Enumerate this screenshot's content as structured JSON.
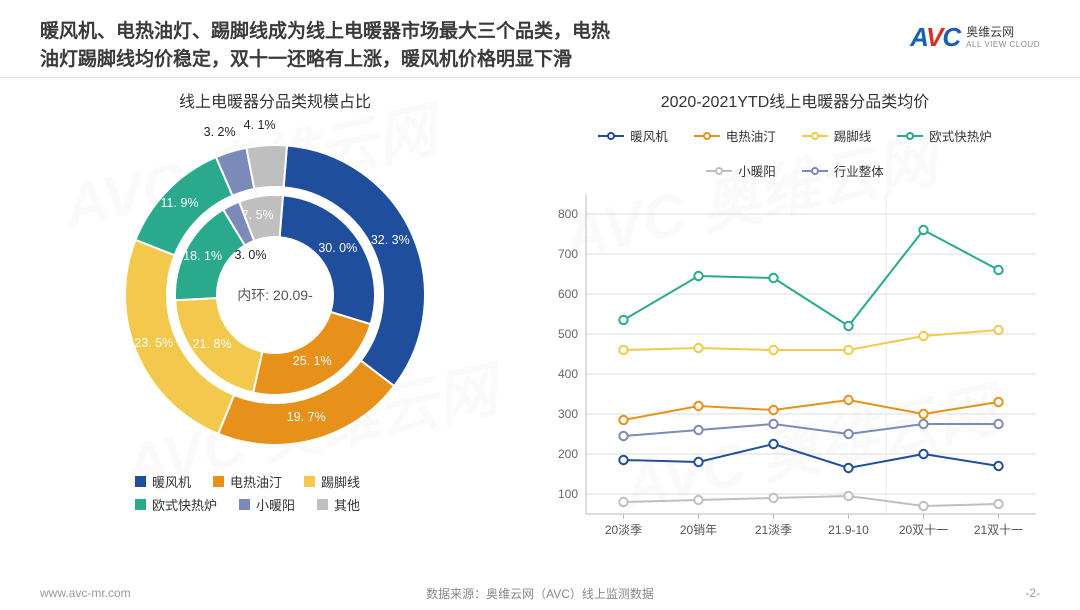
{
  "header": {
    "title_l1": "暖风机、电热油灯、踢脚线成为线上电暖器市场最大三个品类，电热",
    "title_l2": "油灯踢脚线均价稳定，双十一还略有上涨，暖风机价格明显下滑",
    "brand_main": "AVC",
    "brand_cn": "奥维云网",
    "brand_en": "ALL VIEW CLOUD"
  },
  "donut": {
    "title": "线上电暖器分品类规模占比",
    "center_label": "内环: 20.09-",
    "categories": [
      "暖风机",
      "电热油汀",
      "踢脚线",
      "欧式快热炉",
      "小暖阳",
      "其他"
    ],
    "colors": [
      "#1f4e9c",
      "#e8911a",
      "#f2c94c",
      "#2aa98c",
      "#7b8ab8",
      "#bfbfbf"
    ],
    "outer_values": [
      32.3,
      19.7,
      23.5,
      11.9,
      3.2,
      4.1
    ],
    "inner_values": [
      30.0,
      25.1,
      21.8,
      18.1,
      3.0,
      7.5
    ],
    "outer_labels": [
      "32. 3%",
      "19. 7%",
      "23. 5%",
      "11. 9%",
      "3. 2%",
      "4. 1%"
    ],
    "inner_labels": [
      "30. 0%",
      "25. 1%",
      "21. 8%",
      "18. 1%",
      "3. 0%",
      "7. 5%"
    ],
    "legend_rows": [
      [
        {
          "sw": "#1f4e9c",
          "t": "暖风机"
        },
        {
          "sw": "#e8911a",
          "t": "电热油汀"
        },
        {
          "sw": "#f2c94c",
          "t": "踢脚线"
        }
      ],
      [
        {
          "sw": "#2aa98c",
          "t": "欧式快热炉"
        },
        {
          "sw": "#7b8ab8",
          "t": "小暖阳"
        },
        {
          "sw": "#bfbfbf",
          "t": "其他"
        }
      ]
    ]
  },
  "line": {
    "title": "2020-2021YTD线上电暖器分品类均价",
    "series": [
      {
        "name": "暖风机",
        "color": "#1f4e9c",
        "values": [
          185,
          180,
          225,
          165,
          200,
          170
        ]
      },
      {
        "name": "电热油汀",
        "color": "#e8911a",
        "values": [
          285,
          320,
          310,
          335,
          300,
          330
        ]
      },
      {
        "name": "踢脚线",
        "color": "#f2c94c",
        "values": [
          460,
          465,
          460,
          460,
          495,
          510
        ]
      },
      {
        "name": "欧式快热炉",
        "color": "#2aa98c",
        "values": [
          535,
          645,
          640,
          520,
          760,
          660
        ]
      },
      {
        "name": "小暖阳",
        "color": "#bfbfbf",
        "values": [
          80,
          85,
          90,
          95,
          70,
          75
        ]
      },
      {
        "name": "行业整体",
        "color": "#7b8ab8",
        "values": [
          245,
          260,
          275,
          250,
          275,
          275
        ]
      }
    ],
    "x_labels": [
      "20淡季",
      "20销年",
      "21淡季",
      "21.9-10",
      "20双十一",
      "21双十一"
    ],
    "y_ticks": [
      100,
      200,
      300,
      400,
      500,
      600,
      700,
      800
    ],
    "ylim": [
      50,
      850
    ],
    "plot_bg": "#ffffff",
    "grid_color": "#dcdcdc",
    "axis_color": "#bbbbbb",
    "marker_style": "hollow-circle",
    "line_width": 2
  },
  "footer": {
    "url": "www.avc-mr.com",
    "source": "数据来源：奥维云网（AVC）线上监测数据",
    "page": "-2-"
  },
  "watermark": "AVC 奥维云网"
}
